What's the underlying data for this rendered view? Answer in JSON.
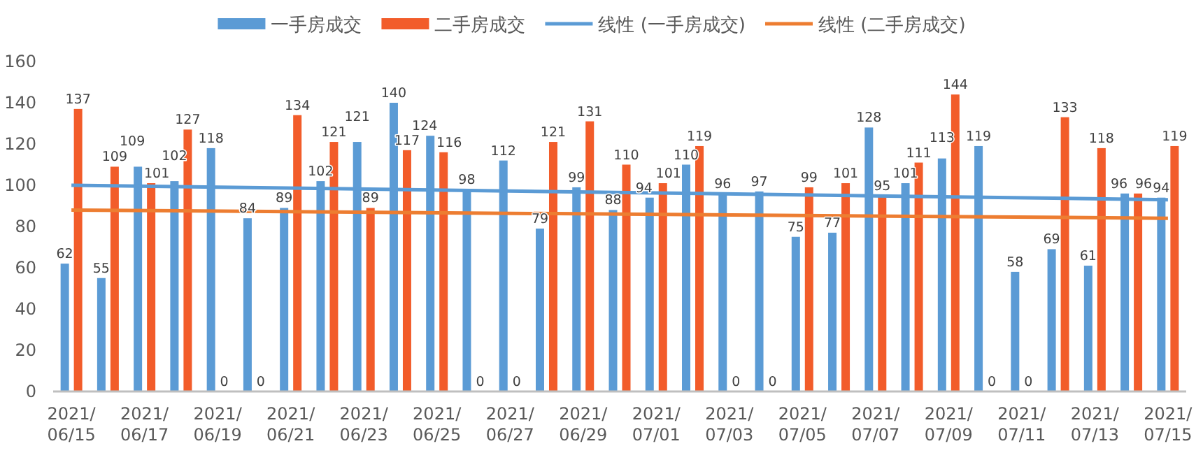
{
  "chart_data": {
    "type": "bar",
    "categories": [
      "2021/06/15",
      null,
      "2021/06/17",
      null,
      "2021/06/19",
      null,
      "2021/06/21",
      null,
      "2021/06/23",
      null,
      "2021/06/25",
      null,
      "2021/06/27",
      null,
      "2021/06/29",
      null,
      "2021/07/01",
      null,
      "2021/07/03",
      null,
      "2021/07/05",
      null,
      "2021/07/07",
      null,
      "2021/07/09",
      null,
      "2021/07/11",
      null,
      "2021/07/13",
      null,
      "2021/07/15"
    ],
    "series": [
      {
        "name": "一手房成交",
        "color": "#5b9bd5",
        "values": [
          62,
          55,
          109,
          102,
          118,
          84,
          89,
          102,
          121,
          140,
          124,
          98,
          112,
          79,
          99,
          88,
          94,
          110,
          96,
          97,
          75,
          77,
          128,
          101,
          113,
          119,
          58,
          69,
          61,
          96,
          94
        ],
        "value_labels": [
          "62",
          "55",
          "109",
          "102",
          "118",
          "84",
          "89",
          "102",
          "121",
          "140",
          "124",
          "98",
          "112",
          "79",
          "99",
          "88",
          "94",
          "110",
          "96",
          "97",
          "75",
          "77",
          "128",
          "101",
          "113",
          "119",
          "58",
          "69",
          "61",
          "96",
          "94"
        ]
      },
      {
        "name": "二手房成交",
        "color": "#f25c2a",
        "values": [
          137,
          109,
          101,
          127,
          0,
          0,
          134,
          121,
          89,
          117,
          116,
          0,
          0,
          121,
          131,
          110,
          101,
          119,
          0,
          0,
          99,
          101,
          95,
          111,
          144,
          0,
          0,
          133,
          118,
          96,
          119
        ],
        "value_labels": [
          "137",
          "109",
          "101",
          "127",
          "0",
          "0",
          "134",
          "121",
          "89",
          "117",
          "116",
          "0",
          "0",
          "121",
          "131",
          "110",
          "101",
          "119",
          "0",
          "0",
          "99",
          "101",
          "95",
          "111",
          "144",
          "0",
          "0",
          "133",
          "118",
          "96",
          "119"
        ]
      },
      {
        "name": "线性 (一手房成交)",
        "type": "line",
        "color": "#5b9bd5",
        "x": [
          "2021/06/15",
          "2021/07/15"
        ],
        "values": [
          100,
          93
        ]
      },
      {
        "name": "线性 (二手房成交)",
        "type": "line",
        "color": "#ed7d31",
        "x": [
          "2021/06/15",
          "2021/07/15"
        ],
        "values": [
          88,
          84
        ]
      }
    ],
    "ylim": [
      0,
      160
    ],
    "yticks": [
      0,
      20,
      40,
      60,
      80,
      100,
      120,
      140,
      160
    ],
    "legend": "top",
    "grid": false
  }
}
